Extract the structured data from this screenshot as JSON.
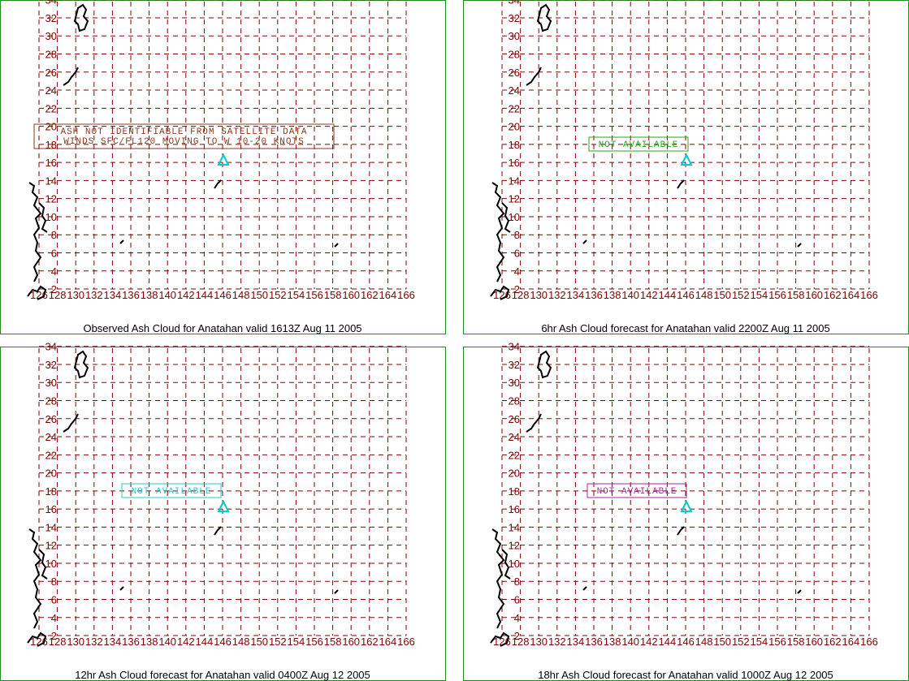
{
  "lat_labels": [
    34,
    32,
    30,
    28,
    26,
    24,
    22,
    20,
    18,
    16,
    14,
    12,
    10,
    8,
    6,
    4,
    2
  ],
  "lon_labels": [
    126,
    128,
    130,
    132,
    134,
    136,
    138,
    140,
    142,
    144,
    146,
    148,
    150,
    152,
    154,
    156,
    158,
    160,
    162,
    164,
    166
  ],
  "panels": [
    {
      "caption": "Observed Ash Cloud for Anatahan valid 1613Z Aug 11 2005",
      "note_lines": [
        "ASH NOT IDENTIFIABLE FROM SATELLITE DATA",
        "WINDS SFC/FL120 MOVING TO W 10-20 KNOTS"
      ],
      "note_color": "#8b3a1a"
    },
    {
      "caption": "6hr Ash Cloud forecast for Anatahan valid 2200Z Aug 11 2005",
      "note_lines": [
        "NOT AVAILABLE"
      ],
      "note_color": "#22aa22"
    },
    {
      "caption": "12hr Ash Cloud forecast for Anatahan valid 0400Z Aug 12 2005",
      "note_lines": [
        "NOT AVAILABLE"
      ],
      "note_color": "#22cccc"
    },
    {
      "caption": "18hr Ash Cloud forecast for Anatahan valid 1000Z Aug 12 2005",
      "note_lines": [
        "NOT AVAILABLE"
      ],
      "note_color": "#aa22aa"
    }
  ]
}
